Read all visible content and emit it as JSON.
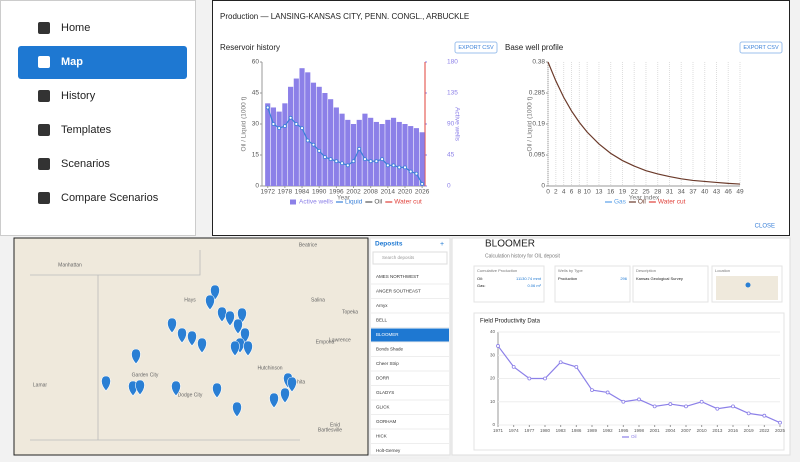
{
  "sidebar": {
    "items": [
      "Home",
      "Map",
      "History",
      "Templates",
      "Scenarios",
      "Compare Scenarios"
    ],
    "active_index": 1
  },
  "production": {
    "title": "Production — LANSING-KANSAS CITY, PENN. CONGL., ARBUCKLE",
    "close": "CLOSE",
    "charts": [
      {
        "type": "bar",
        "title": "Reservoir history",
        "export": "EXPORT CSV",
        "x_label": "Year",
        "y_label": "Oil / Liquid (1000 t)",
        "y2_label": "Active wells",
        "x": [
          1972,
          1974,
          1976,
          1978,
          1980,
          1982,
          1984,
          1986,
          1988,
          1990,
          1992,
          1994,
          1996,
          1998,
          2000,
          2002,
          2004,
          2006,
          2008,
          2010,
          2012,
          2014,
          2016,
          2018,
          2020,
          2022,
          2024,
          2026
        ],
        "xlim": [
          1970,
          2027
        ],
        "xticks": [
          1972,
          1978,
          1984,
          1990,
          1996,
          2002,
          2008,
          2014,
          2020,
          2026
        ],
        "ylim": [
          0,
          60
        ],
        "yticks": [
          0,
          15,
          30,
          45,
          60
        ],
        "y2lim": [
          0,
          180
        ],
        "y2ticks": [
          0,
          45,
          90,
          135,
          180
        ],
        "grid": false,
        "series": [
          {
            "name": "Active wells",
            "color": "#8c80e8",
            "style": "bar",
            "axis": "y2",
            "values": [
              120,
              114,
              108,
              120,
              144,
              156,
              171,
              165,
              150,
              144,
              135,
              126,
              114,
              105,
              96,
              90,
              96,
              105,
              99,
              93,
              90,
              96,
              99,
              93,
              90,
              87,
              84,
              78
            ]
          },
          {
            "name": "Liquid",
            "color": "#3a80d8",
            "style": "line",
            "values": [
              38,
              30,
              28,
              29,
              33,
              30,
              28,
              22,
              20,
              17,
              14,
              13,
              12,
              11,
              10,
              12,
              18,
              13,
              12,
              12,
              13,
              10,
              10,
              9,
              9,
              7,
              6,
              1
            ]
          },
          {
            "name": "Oil",
            "color": "#555555",
            "style": "line"
          },
          {
            "name": "Water cut",
            "color": "#e0403a",
            "style": "line"
          }
        ]
      },
      {
        "type": "line",
        "title": "Base well profile",
        "export": "EXPORT CSV",
        "x_label": "Year index",
        "y_label": "Oil / Liquid (1000 t)",
        "x": [
          0,
          2,
          4,
          6,
          8,
          10,
          13,
          16,
          19,
          22,
          25,
          28,
          31,
          34,
          37,
          40,
          43,
          46,
          49
        ],
        "xlim": [
          0,
          49
        ],
        "xticks": [
          0,
          2,
          4,
          6,
          8,
          10,
          13,
          16,
          19,
          22,
          25,
          28,
          31,
          34,
          37,
          40,
          43,
          46,
          49
        ],
        "ylim": [
          0,
          0.38
        ],
        "yticks": [
          0,
          0.095,
          0.19,
          0.285,
          0.38
        ],
        "grid": "x",
        "series": [
          {
            "name": "Gas",
            "color": "#5aa0e8",
            "style": "line"
          },
          {
            "name": "Oil",
            "color": "#6b3a2a",
            "style": "line",
            "values": [
              0.38,
              0.322,
              0.272,
              0.23,
              0.195,
              0.165,
              0.129,
              0.1,
              0.078,
              0.061,
              0.047,
              0.037,
              0.029,
              0.022,
              0.017,
              0.014,
              0.011,
              0.008,
              0.006
            ]
          },
          {
            "name": "Water cut",
            "color": "#e0403a",
            "style": "line"
          }
        ]
      }
    ]
  },
  "map": {
    "places": [
      "Beatrice",
      "Manhattan",
      "Salina",
      "Topeka",
      "Lawrence",
      "Hays",
      "Lamar",
      "Garden City",
      "Dodge City",
      "Hutchinson",
      "Wichita",
      "Emporia",
      "Bartlesville",
      "Enid"
    ]
  },
  "deposits": {
    "title": "Deposits",
    "add": "+",
    "search": "Search deposits",
    "items": [
      "AMES NORTHWEST",
      "ANGER SOUTHEAST",
      "Arnyx",
      "BELL",
      "BLOOMER",
      "Bonds Shade",
      "Cheer Strip",
      "DORR",
      "GLADYS",
      "GLICK",
      "GORHAM",
      "HICK",
      "Holt-Gerney"
    ],
    "selected_index": 4
  },
  "deposit": {
    "title": "BLOOMER",
    "subtitle": "Calculation history for OIL deposit",
    "cards": [
      {
        "label": "Cumulative Production",
        "rows": [
          [
            "Oil:",
            "11130.74 mmt"
          ],
          [
            "Gas:",
            "0.06 m³"
          ]
        ]
      },
      {
        "label": "Wells by Type",
        "rows": [
          [
            "Production",
            "296"
          ]
        ]
      },
      {
        "label": "Description",
        "rows": [
          [
            "Kansas Geological Survey"
          ]
        ]
      },
      {
        "label": "Location"
      }
    ],
    "chart": {
      "type": "line",
      "title": "Field Productivity Data",
      "x": [
        1971,
        1974,
        1977,
        1980,
        1983,
        1986,
        1989,
        1992,
        1995,
        1998,
        2001,
        2004,
        2007,
        2010,
        2013,
        2016,
        2019,
        2022,
        2025
      ],
      "xlim": [
        1971,
        2025
      ],
      "xticks": [
        1971,
        1974,
        1977,
        1980,
        1983,
        1986,
        1989,
        1992,
        1995,
        1998,
        2001,
        2004,
        2007,
        2010,
        2013,
        2016,
        2019,
        2022,
        2025
      ],
      "ylim": [
        0,
        40
      ],
      "yticks": [
        0,
        10,
        20,
        30,
        40
      ],
      "grid": "y",
      "series": [
        {
          "name": "Oil",
          "color": "#8c80e8",
          "style": "line",
          "values": [
            34,
            25,
            20,
            20,
            27,
            25,
            15,
            14,
            10,
            11,
            8,
            9,
            8,
            10,
            7,
            8,
            5,
            4,
            1
          ]
        }
      ]
    }
  }
}
